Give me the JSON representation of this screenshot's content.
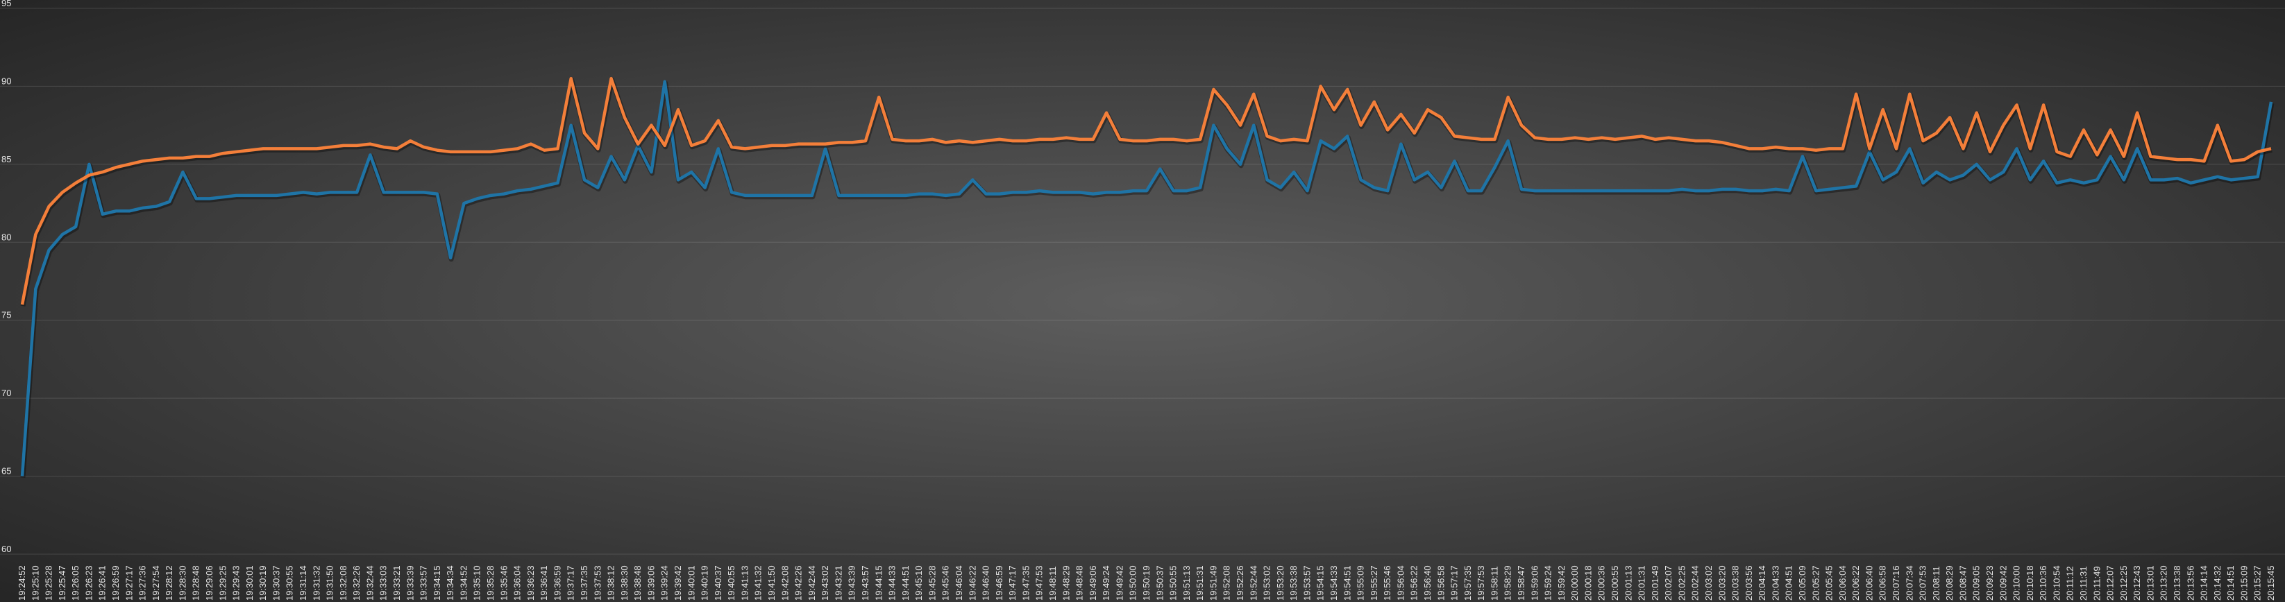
{
  "chart_data": {
    "type": "line",
    "categories": [
      "19:24:52",
      "19:25:10",
      "19:25:28",
      "19:25:47",
      "19:26:05",
      "19:26:23",
      "19:26:41",
      "19:26:59",
      "19:27:17",
      "19:27:36",
      "19:27:54",
      "19:28:12",
      "19:28:30",
      "19:28:48",
      "19:29:06",
      "19:29:25",
      "19:29:43",
      "19:30:01",
      "19:30:19",
      "19:30:37",
      "19:30:55",
      "19:31:14",
      "19:31:32",
      "19:31:50",
      "19:32:08",
      "19:32:26",
      "19:32:44",
      "19:33:03",
      "19:33:21",
      "19:33:39",
      "19:33:57",
      "19:34:15",
      "19:34:34",
      "19:34:52",
      "19:35:10",
      "19:35:28",
      "19:35:46",
      "19:36:04",
      "19:36:23",
      "19:36:41",
      "19:36:59",
      "19:37:17",
      "19:37:35",
      "19:37:53",
      "19:38:12",
      "19:38:30",
      "19:38:48",
      "19:39:06",
      "19:39:24",
      "19:39:42",
      "19:40:01",
      "19:40:19",
      "19:40:37",
      "19:40:55",
      "19:41:13",
      "19:41:32",
      "19:41:50",
      "19:42:08",
      "19:42:26",
      "19:42:44",
      "19:43:02",
      "19:43:21",
      "19:43:39",
      "19:43:57",
      "19:44:15",
      "19:44:33",
      "19:44:51",
      "19:45:10",
      "19:45:28",
      "19:45:46",
      "19:46:04",
      "19:46:22",
      "19:46:40",
      "19:46:59",
      "19:47:17",
      "19:47:35",
      "19:47:53",
      "19:48:11",
      "19:48:29",
      "19:48:48",
      "19:49:06",
      "19:49:24",
      "19:49:42",
      "19:50:00",
      "19:50:19",
      "19:50:37",
      "19:50:55",
      "19:51:13",
      "19:51:31",
      "19:51:49",
      "19:52:08",
      "19:52:26",
      "19:52:44",
      "19:53:02",
      "19:53:20",
      "19:53:38",
      "19:53:57",
      "19:54:15",
      "19:54:33",
      "19:54:51",
      "19:55:09",
      "19:55:27",
      "19:55:46",
      "19:56:04",
      "19:56:22",
      "19:56:40",
      "19:56:58",
      "19:57:17",
      "19:57:35",
      "19:57:53",
      "19:58:11",
      "19:58:29",
      "19:58:47",
      "19:59:06",
      "19:59:24",
      "19:59:42",
      "20:00:00",
      "20:00:18",
      "20:00:36",
      "20:00:55",
      "20:01:13",
      "20:01:31",
      "20:01:49",
      "20:02:07",
      "20:02:25",
      "20:02:44",
      "20:03:02",
      "20:03:20",
      "20:03:38",
      "20:03:56",
      "20:04:14",
      "20:04:33",
      "20:04:51",
      "20:05:09",
      "20:05:27",
      "20:05:45",
      "20:06:04",
      "20:06:22",
      "20:06:40",
      "20:06:58",
      "20:07:16",
      "20:07:34",
      "20:07:53",
      "20:08:11",
      "20:08:29",
      "20:08:47",
      "20:09:05",
      "20:09:23",
      "20:09:42",
      "20:10:00",
      "20:10:18",
      "20:10:36",
      "20:10:54",
      "20:11:12",
      "20:11:31",
      "20:11:49",
      "20:12:07",
      "20:12:25",
      "20:12:43",
      "20:13:01",
      "20:13:20",
      "20:13:38",
      "20:13:56",
      "20:14:14",
      "20:14:32",
      "20:14:51",
      "20:15:09",
      "20:15:27",
      "20:15:45"
    ],
    "series": [
      {
        "color": "#f47f3a",
        "values": [
          76,
          80.5,
          82.3,
          83.2,
          83.8,
          84.3,
          84.5,
          84.8,
          85,
          85.2,
          85.3,
          85.4,
          85.4,
          85.5,
          85.5,
          85.7,
          85.8,
          85.9,
          86,
          86,
          86,
          86,
          86,
          86.1,
          86.2,
          86.2,
          86.3,
          86.1,
          86,
          86.5,
          86.1,
          85.9,
          85.8,
          85.8,
          85.8,
          85.8,
          85.9,
          86,
          86.3,
          85.9,
          86,
          90.5,
          87,
          86,
          90.5,
          88,
          86.3,
          87.5,
          86.2,
          88.5,
          86.2,
          86.5,
          87.8,
          86.1,
          86,
          86.1,
          86.2,
          86.2,
          86.3,
          86.3,
          86.3,
          86.4,
          86.4,
          86.5,
          89.3,
          86.6,
          86.5,
          86.5,
          86.6,
          86.4,
          86.5,
          86.4,
          86.5,
          86.6,
          86.5,
          86.5,
          86.6,
          86.6,
          86.7,
          86.6,
          86.6,
          88.3,
          86.6,
          86.5,
          86.5,
          86.6,
          86.6,
          86.5,
          86.6,
          89.8,
          88.8,
          87.5,
          89.5,
          86.8,
          86.5,
          86.6,
          86.5,
          90,
          88.5,
          89.8,
          87.5,
          89,
          87.2,
          88.2,
          87,
          88.5,
          88,
          86.8,
          86.7,
          86.6,
          86.6,
          89.3,
          87.5,
          86.7,
          86.6,
          86.6,
          86.7,
          86.6,
          86.7,
          86.6,
          86.7,
          86.8,
          86.6,
          86.7,
          86.6,
          86.5,
          86.5,
          86.4,
          86.2,
          86,
          86,
          86.1,
          86,
          86,
          85.9,
          86,
          86,
          89.5,
          86,
          88.5,
          86,
          89.5,
          86.5,
          87,
          88,
          86,
          88.3,
          85.8,
          87.5,
          88.8,
          86,
          88.8,
          85.8,
          85.5,
          87.2,
          85.6,
          87.2,
          85.5,
          88.3,
          85.5,
          85.4,
          85.3,
          85.3,
          85.2,
          87.5,
          85.2,
          85.3,
          85.8,
          86
        ]
      },
      {
        "color": "#1f74a6",
        "values": [
          65,
          77,
          79.5,
          80.5,
          81,
          85,
          81.8,
          82,
          82,
          82.2,
          82.3,
          82.6,
          84.5,
          82.8,
          82.8,
          82.9,
          83,
          83,
          83,
          83,
          83.1,
          83.2,
          83.1,
          83.2,
          83.2,
          83.2,
          85.6,
          83.2,
          83.2,
          83.2,
          83.2,
          83.1,
          79,
          82.5,
          82.8,
          83,
          83.1,
          83.3,
          83.4,
          83.6,
          83.8,
          87.5,
          84,
          83.5,
          85.5,
          84,
          86.2,
          84.5,
          90.3,
          84,
          84.5,
          83.5,
          86,
          83.2,
          83,
          83,
          83,
          83,
          83,
          83,
          86,
          83,
          83,
          83,
          83,
          83,
          83,
          83.1,
          83.1,
          83,
          83.1,
          84,
          83.1,
          83.1,
          83.2,
          83.2,
          83.3,
          83.2,
          83.2,
          83.2,
          83.1,
          83.2,
          83.2,
          83.3,
          83.3,
          84.7,
          83.3,
          83.3,
          83.5,
          87.5,
          86,
          85,
          87.5,
          84,
          83.5,
          84.5,
          83.3,
          86.5,
          86,
          86.8,
          84,
          83.5,
          83.3,
          86.3,
          84,
          84.5,
          83.5,
          85.2,
          83.3,
          83.3,
          84.8,
          86.5,
          83.4,
          83.3,
          83.3,
          83.3,
          83.3,
          83.3,
          83.3,
          83.3,
          83.3,
          83.3,
          83.3,
          83.3,
          83.4,
          83.3,
          83.3,
          83.4,
          83.4,
          83.3,
          83.3,
          83.4,
          83.3,
          85.5,
          83.3,
          83.4,
          83.5,
          83.6,
          85.8,
          84,
          84.5,
          86,
          83.8,
          84.5,
          84,
          84.3,
          85,
          84,
          84.5,
          86,
          84,
          85.2,
          83.8,
          84,
          83.8,
          84,
          85.5,
          84,
          86,
          84,
          84,
          84.1,
          83.8,
          84,
          84.2,
          84,
          84.1,
          84.2,
          89
        ]
      }
    ],
    "ylim": [
      60,
      95
    ],
    "yticks": [
      60,
      65,
      70,
      75,
      80,
      85,
      90,
      95
    ],
    "grid": true
  }
}
